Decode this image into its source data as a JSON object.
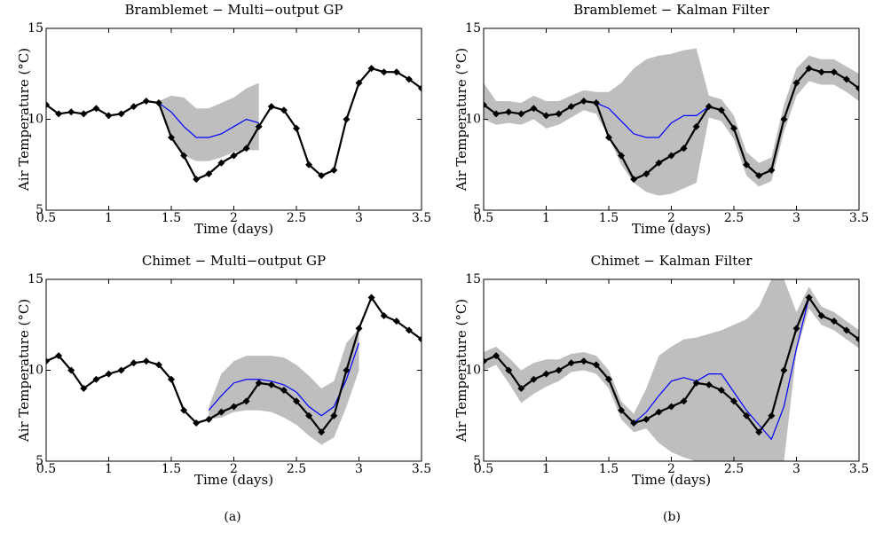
{
  "figure_labels": [
    "(a)",
    "(b)"
  ],
  "chart_data": [
    {
      "type": "line",
      "title": "Bramblemet − Multi−output GP",
      "xlabel": "Time (days)",
      "ylabel": "Air Temperature (°C)",
      "x": [
        0.5,
        0.6,
        0.7,
        0.8,
        0.9,
        1.0,
        1.1,
        1.2,
        1.3,
        1.4,
        1.5,
        1.6,
        1.7,
        1.8,
        1.9,
        2.0,
        2.1,
        2.2,
        2.3,
        2.4,
        2.5,
        2.6,
        2.7,
        2.8,
        2.9,
        3.0,
        3.1,
        3.2,
        3.3,
        3.4,
        3.5
      ],
      "xlim": [
        0.5,
        3.5
      ],
      "xticks": [
        0.5,
        1,
        1.5,
        2,
        2.5,
        3,
        3.5
      ],
      "ylim": [
        5,
        15
      ],
      "yticks": [
        5,
        10,
        15
      ],
      "band": {
        "color": "#bebebe",
        "lower": [
          null,
          null,
          null,
          null,
          null,
          null,
          null,
          null,
          null,
          10.8,
          9.0,
          8.0,
          7.7,
          7.7,
          7.9,
          8.2,
          8.3,
          8.3,
          null,
          null,
          null,
          null,
          null,
          null,
          null,
          null,
          null,
          null,
          null,
          null,
          null
        ],
        "upper": [
          null,
          null,
          null,
          null,
          null,
          null,
          null,
          null,
          null,
          11.0,
          11.3,
          11.2,
          10.6,
          10.6,
          10.9,
          11.2,
          11.7,
          12.0,
          null,
          null,
          null,
          null,
          null,
          null,
          null,
          null,
          null,
          null,
          null,
          null,
          null
        ]
      },
      "series": [
        {
          "color": "#0000ff",
          "values": [
            null,
            null,
            null,
            null,
            null,
            null,
            null,
            null,
            null,
            10.9,
            10.4,
            9.6,
            9.0,
            9.0,
            9.2,
            9.6,
            10.0,
            9.8,
            null,
            null,
            null,
            null,
            null,
            null,
            null,
            null,
            null,
            null,
            null,
            null,
            null
          ]
        },
        {
          "color": "#000000",
          "marker": "diamond",
          "values": [
            10.8,
            10.3,
            10.4,
            10.3,
            10.6,
            10.2,
            10.3,
            10.7,
            11.0,
            10.9,
            9.0,
            8.0,
            6.7,
            7.0,
            7.6,
            8.0,
            8.4,
            9.6,
            10.7,
            10.5,
            9.5,
            7.5,
            6.9,
            7.2,
            10.0,
            12.0,
            12.8,
            12.6,
            12.6,
            12.2,
            11.7
          ]
        }
      ]
    },
    {
      "type": "line",
      "title": "Bramblemet − Kalman Filter",
      "xlabel": "Time (days)",
      "ylabel": "Air Temperature (°C)",
      "x": [
        0.5,
        0.6,
        0.7,
        0.8,
        0.9,
        1.0,
        1.1,
        1.2,
        1.3,
        1.4,
        1.5,
        1.6,
        1.7,
        1.8,
        1.9,
        2.0,
        2.1,
        2.2,
        2.3,
        2.4,
        2.5,
        2.6,
        2.7,
        2.8,
        2.9,
        3.0,
        3.1,
        3.2,
        3.3,
        3.4,
        3.5
      ],
      "xlim": [
        0.5,
        3.5
      ],
      "xticks": [
        0.5,
        1,
        1.5,
        2,
        2.5,
        3,
        3.5
      ],
      "ylim": [
        5,
        15
      ],
      "yticks": [
        5,
        10,
        15
      ],
      "band": {
        "color": "#bebebe",
        "lower": [
          10.0,
          9.7,
          9.8,
          9.7,
          10.0,
          9.5,
          9.7,
          10.1,
          10.5,
          10.3,
          9.0,
          7.5,
          6.5,
          6.0,
          5.8,
          5.9,
          6.2,
          6.5,
          10.1,
          9.9,
          8.9,
          6.9,
          6.3,
          6.6,
          9.3,
          11.3,
          12.1,
          11.9,
          11.9,
          11.5,
          11.0
        ],
        "upper": [
          12.0,
          11.0,
          11.0,
          10.9,
          11.3,
          11.0,
          11.0,
          11.3,
          11.6,
          11.5,
          11.5,
          12.0,
          12.8,
          13.3,
          13.5,
          13.6,
          13.8,
          13.9,
          11.3,
          11.1,
          10.2,
          8.2,
          7.6,
          7.9,
          10.8,
          12.8,
          13.5,
          13.3,
          13.3,
          12.9,
          12.5
        ]
      },
      "series": [
        {
          "color": "#0000ff",
          "values": [
            10.8,
            10.3,
            10.4,
            10.3,
            10.6,
            10.2,
            10.3,
            10.7,
            11.0,
            10.9,
            10.6,
            9.9,
            9.2,
            9.0,
            9.0,
            9.8,
            10.2,
            10.2,
            10.7,
            10.5,
            9.5,
            7.5,
            6.9,
            7.2,
            10.0,
            12.0,
            12.8,
            12.6,
            12.6,
            12.2,
            11.7
          ]
        },
        {
          "color": "#000000",
          "marker": "diamond",
          "values": [
            10.8,
            10.3,
            10.4,
            10.3,
            10.6,
            10.2,
            10.3,
            10.7,
            11.0,
            10.9,
            9.0,
            8.0,
            6.7,
            7.0,
            7.6,
            8.0,
            8.4,
            9.6,
            10.7,
            10.5,
            9.5,
            7.5,
            6.9,
            7.2,
            10.0,
            12.0,
            12.8,
            12.6,
            12.6,
            12.2,
            11.7
          ]
        }
      ]
    },
    {
      "type": "line",
      "title": "Chimet − Multi−output GP",
      "xlabel": "Time (days)",
      "ylabel": "Air Temperature (°C)",
      "x": [
        0.5,
        0.6,
        0.7,
        0.8,
        0.9,
        1.0,
        1.1,
        1.2,
        1.3,
        1.4,
        1.5,
        1.6,
        1.7,
        1.8,
        1.9,
        2.0,
        2.1,
        2.2,
        2.3,
        2.4,
        2.5,
        2.6,
        2.7,
        2.8,
        2.9,
        3.0,
        3.1,
        3.2,
        3.3,
        3.4,
        3.5
      ],
      "xlim": [
        0.5,
        3.5
      ],
      "xticks": [
        0.5,
        1,
        1.5,
        2,
        2.5,
        3,
        3.5
      ],
      "ylim": [
        5,
        15
      ],
      "yticks": [
        5,
        10,
        15
      ],
      "band": {
        "color": "#bebebe",
        "lower": [
          null,
          null,
          null,
          null,
          null,
          null,
          null,
          null,
          null,
          null,
          null,
          null,
          null,
          7.3,
          7.4,
          7.7,
          7.8,
          7.8,
          7.7,
          7.4,
          7.0,
          6.4,
          5.9,
          6.3,
          8.0,
          10.0,
          null,
          null,
          null,
          null,
          null
        ],
        "upper": [
          null,
          null,
          null,
          null,
          null,
          null,
          null,
          null,
          null,
          null,
          null,
          null,
          null,
          8.0,
          9.8,
          10.5,
          10.8,
          10.8,
          10.8,
          10.7,
          10.3,
          9.7,
          9.0,
          9.4,
          11.5,
          12.3,
          null,
          null,
          null,
          null,
          null
        ]
      },
      "series": [
        {
          "color": "#0000ff",
          "values": [
            null,
            null,
            null,
            null,
            null,
            null,
            null,
            null,
            null,
            null,
            null,
            null,
            null,
            7.8,
            8.6,
            9.3,
            9.5,
            9.5,
            9.4,
            9.2,
            8.8,
            8.0,
            7.5,
            8.0,
            9.5,
            11.5,
            null,
            null,
            null,
            null,
            null
          ]
        },
        {
          "color": "#000000",
          "marker": "diamond",
          "values": [
            10.5,
            10.8,
            10.0,
            9.0,
            9.5,
            9.8,
            10.0,
            10.4,
            10.5,
            10.3,
            9.5,
            7.8,
            7.1,
            7.3,
            7.7,
            8.0,
            8.3,
            9.3,
            9.2,
            8.9,
            8.3,
            7.5,
            6.6,
            7.5,
            10.0,
            12.3,
            14.0,
            13.0,
            12.7,
            12.2,
            11.7
          ]
        }
      ]
    },
    {
      "type": "line",
      "title": "Chimet − Kalman Filter",
      "xlabel": "Time (days)",
      "ylabel": "Air Temperature (°C)",
      "x": [
        0.5,
        0.6,
        0.7,
        0.8,
        0.9,
        1.0,
        1.1,
        1.2,
        1.3,
        1.4,
        1.5,
        1.6,
        1.7,
        1.8,
        1.9,
        2.0,
        2.1,
        2.2,
        2.3,
        2.4,
        2.5,
        2.6,
        2.7,
        2.8,
        2.9,
        3.0,
        3.1,
        3.2,
        3.3,
        3.4,
        3.5
      ],
      "xlim": [
        0.5,
        3.5
      ],
      "xticks": [
        0.5,
        1,
        1.5,
        2,
        2.5,
        3,
        3.5
      ],
      "ylim": [
        5,
        15
      ],
      "yticks": [
        5,
        10,
        15
      ],
      "band": {
        "color": "#bebebe",
        "lower": [
          10.0,
          10.3,
          9.3,
          8.2,
          8.7,
          9.1,
          9.4,
          9.9,
          10.0,
          9.8,
          9.0,
          7.3,
          6.6,
          6.8,
          6.0,
          5.5,
          5.2,
          5.0,
          5.0,
          5.0,
          5.0,
          5.0,
          5.0,
          5.0,
          5.0,
          11.0,
          13.4,
          12.5,
          12.2,
          11.7,
          11.2
        ],
        "upper": [
          11.0,
          11.3,
          10.7,
          10.0,
          10.4,
          10.6,
          10.6,
          10.9,
          11.0,
          10.8,
          10.0,
          8.3,
          7.6,
          9.0,
          10.8,
          11.3,
          11.7,
          11.8,
          12.0,
          12.2,
          12.5,
          12.8,
          13.5,
          15,
          15,
          13.2,
          14.6,
          13.5,
          13.2,
          12.7,
          12.2
        ]
      },
      "series": [
        {
          "color": "#0000ff",
          "values": [
            10.5,
            10.8,
            10.0,
            9.0,
            9.5,
            9.8,
            10.0,
            10.4,
            10.5,
            10.3,
            9.5,
            7.8,
            7.1,
            7.7,
            8.6,
            9.4,
            9.6,
            9.4,
            9.8,
            9.8,
            8.8,
            7.8,
            7.0,
            6.2,
            8.0,
            11.2,
            14.0,
            13.0,
            12.7,
            12.2,
            11.7
          ]
        },
        {
          "color": "#000000",
          "marker": "diamond",
          "values": [
            10.5,
            10.8,
            10.0,
            9.0,
            9.5,
            9.8,
            10.0,
            10.4,
            10.5,
            10.3,
            9.5,
            7.8,
            7.1,
            7.3,
            7.7,
            8.0,
            8.3,
            9.3,
            9.2,
            8.9,
            8.3,
            7.5,
            6.6,
            7.5,
            10.0,
            12.3,
            14.0,
            13.0,
            12.7,
            12.2,
            11.7
          ]
        }
      ]
    }
  ]
}
